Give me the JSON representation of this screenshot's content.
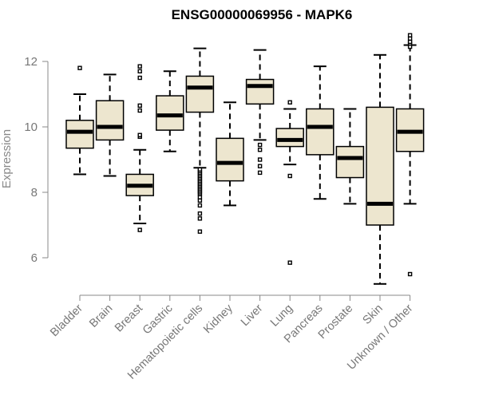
{
  "chart_data": {
    "type": "boxplot",
    "title": "ENSG00000069956 - MAPK6",
    "xlabel": "",
    "ylabel": "Expression",
    "ylim": [
      5.0,
      13.0
    ],
    "yticks": [
      6,
      8,
      10,
      12
    ],
    "box_color": "#ede6cf",
    "categories": [
      "Bladder",
      "Brain",
      "Breast",
      "Gastric",
      "Hematopoietic cells",
      "Kidney",
      "Liver",
      "Lung",
      "Pancreas",
      "Prostate",
      "Skin",
      "Unknown / Other"
    ],
    "series": [
      {
        "name": "Bladder",
        "whisker_low": 8.55,
        "q1": 9.35,
        "median": 9.85,
        "q3": 10.2,
        "whisker_high": 11.0,
        "outliers": [
          11.8
        ]
      },
      {
        "name": "Brain",
        "whisker_low": 8.5,
        "q1": 9.6,
        "median": 10.0,
        "q3": 10.8,
        "whisker_high": 11.6,
        "outliers": []
      },
      {
        "name": "Breast",
        "whisker_low": 7.05,
        "q1": 7.9,
        "median": 8.2,
        "q3": 8.55,
        "whisker_high": 9.3,
        "outliers": [
          6.85,
          9.7,
          9.75,
          10.5,
          10.65,
          11.5,
          11.7,
          11.85
        ]
      },
      {
        "name": "Gastric",
        "whisker_low": 9.25,
        "q1": 9.9,
        "median": 10.35,
        "q3": 10.95,
        "whisker_high": 11.7,
        "outliers": []
      },
      {
        "name": "Hematopoietic cells",
        "whisker_low": 8.75,
        "q1": 10.45,
        "median": 11.2,
        "q3": 11.55,
        "whisker_high": 12.4,
        "outliers": [
          6.8,
          7.2,
          7.35,
          7.6,
          7.75,
          7.85,
          7.95,
          8.0,
          8.05,
          8.1,
          8.15,
          8.2,
          8.25,
          8.3,
          8.35,
          8.4,
          8.45,
          8.5,
          8.55,
          8.6,
          8.65,
          8.7
        ]
      },
      {
        "name": "Kidney",
        "whisker_low": 7.6,
        "q1": 8.35,
        "median": 8.9,
        "q3": 9.65,
        "whisker_high": 10.75,
        "outliers": []
      },
      {
        "name": "Liver",
        "whisker_low": 9.6,
        "q1": 10.7,
        "median": 11.25,
        "q3": 11.45,
        "whisker_high": 12.35,
        "outliers": [
          8.6,
          8.8,
          9.0,
          9.3,
          9.45
        ]
      },
      {
        "name": "Lung",
        "whisker_low": 8.85,
        "q1": 9.4,
        "median": 9.6,
        "q3": 9.95,
        "whisker_high": 10.55,
        "outliers": [
          5.85,
          8.5,
          10.75
        ]
      },
      {
        "name": "Pancreas",
        "whisker_low": 7.8,
        "q1": 9.15,
        "median": 10.0,
        "q3": 10.55,
        "whisker_high": 11.85,
        "outliers": []
      },
      {
        "name": "Prostate",
        "whisker_low": 7.65,
        "q1": 8.45,
        "median": 9.05,
        "q3": 9.4,
        "whisker_high": 10.55,
        "outliers": []
      },
      {
        "name": "Skin",
        "whisker_low": 5.2,
        "q1": 7.0,
        "median": 7.65,
        "q3": 10.6,
        "whisker_high": 12.2,
        "outliers": []
      },
      {
        "name": "Unknown / Other",
        "whisker_low": 7.65,
        "q1": 9.25,
        "median": 9.85,
        "q3": 10.55,
        "whisker_high": 12.5,
        "outliers": [
          5.5,
          12.45,
          12.55,
          12.6,
          12.7,
          12.8
        ]
      }
    ]
  }
}
